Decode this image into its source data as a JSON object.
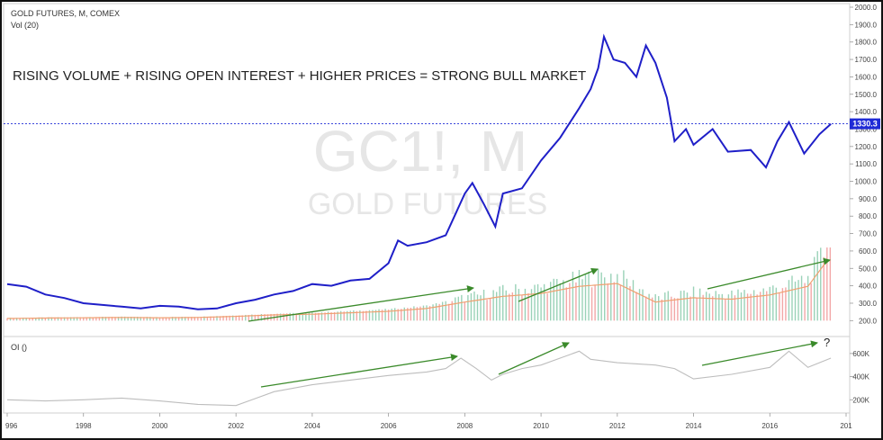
{
  "header": {
    "symbol_line": "GOLD FUTURES, M, COMEX",
    "volume_line": "Vol (20)",
    "oi_line": "OI ()"
  },
  "annotation": {
    "text": "RISING VOLUME + RISING OPEN INTEREST + HIGHER PRICES = STRONG BULL MARKET",
    "question_mark": "?"
  },
  "watermark": {
    "ticker": "GC1!, M",
    "name": "GOLD FUTURES"
  },
  "colors": {
    "price_line": "#1f1fc8",
    "last_price_badge": "#1f2bd6",
    "volume_up": "#9ad2b8",
    "volume_down": "#f2a7a7",
    "volume_ma": "#f0a070",
    "open_interest": "#bdbdbd",
    "arrows": "#3a8a2a",
    "frame": "#111111"
  },
  "chart_data": [
    {
      "type": "line",
      "title": "GOLD FUTURES, M, COMEX",
      "series": [
        {
          "name": "GOLD FUTURES, M, COMEX",
          "x": [
            1996.0,
            1996.5,
            1997.0,
            1997.5,
            1998.0,
            1998.5,
            1999.0,
            1999.5,
            2000.0,
            2000.5,
            2001.0,
            2001.5,
            2002.0,
            2002.5,
            2003.0,
            2003.5,
            2004.0,
            2004.5,
            2005.0,
            2005.5,
            2006.0,
            2006.25,
            2006.5,
            2007.0,
            2007.5,
            2008.0,
            2008.2,
            2008.5,
            2008.8,
            2009.0,
            2009.5,
            2010.0,
            2010.5,
            2011.0,
            2011.3,
            2011.5,
            2011.65,
            2011.9,
            2012.2,
            2012.5,
            2012.75,
            2013.0,
            2013.3,
            2013.5,
            2013.8,
            2014.0,
            2014.5,
            2014.9,
            2015.5,
            2015.9,
            2016.2,
            2016.5,
            2016.9,
            2017.3,
            2017.6
          ],
          "values": [
            410,
            395,
            350,
            330,
            300,
            290,
            280,
            270,
            285,
            280,
            265,
            270,
            300,
            320,
            350,
            370,
            410,
            400,
            430,
            440,
            530,
            660,
            630,
            650,
            690,
            930,
            990,
            870,
            740,
            930,
            960,
            1120,
            1250,
            1420,
            1530,
            1650,
            1830,
            1700,
            1680,
            1600,
            1780,
            1680,
            1480,
            1230,
            1300,
            1210,
            1300,
            1170,
            1180,
            1080,
            1230,
            1340,
            1160,
            1270,
            1330
          ]
        }
      ],
      "xlim": [
        1996,
        2018
      ],
      "ylim": [
        150,
        2000
      ],
      "y_ticks": [
        "2000.0",
        "1900.0",
        "1800.0",
        "1700.0",
        "1600.0",
        "1500.0",
        "1400.0",
        "1300.0",
        "1200.0",
        "1100.0",
        "1000.0",
        "900.0",
        "800.0",
        "700.0",
        "600.0",
        "500.0",
        "400.0",
        "300.0",
        "200.0"
      ],
      "last_price": "1330.3",
      "grid": false
    },
    {
      "type": "bar",
      "title": "Vol (20)",
      "series": [
        {
          "name": "Volume",
          "x": [
            1996,
            1997,
            1998,
            1999,
            2000,
            2001,
            2002,
            2003,
            2004,
            2005,
            2006,
            2007,
            2008,
            2009,
            2010,
            2011,
            2012,
            2013,
            2014,
            2015,
            2016,
            2017,
            2017.5
          ],
          "values": [
            215,
            218,
            220,
            222,
            220,
            222,
            230,
            240,
            245,
            255,
            265,
            285,
            330,
            370,
            390,
            440,
            460,
            330,
            360,
            350,
            380,
            440,
            620
          ]
        }
      ]
    },
    {
      "type": "line",
      "title": "OI ()",
      "series": [
        {
          "name": "OI ()",
          "x": [
            1996.0,
            1997.0,
            1998.0,
            1999.0,
            2000.0,
            2001.0,
            2002.0,
            2002.5,
            2003.0,
            2004.0,
            2005.0,
            2006.0,
            2007.0,
            2007.5,
            2007.9,
            2008.3,
            2008.7,
            2009.0,
            2009.5,
            2010.0,
            2010.5,
            2011.0,
            2011.3,
            2012.0,
            2013.0,
            2013.5,
            2014.0,
            2015.0,
            2016.0,
            2016.5,
            2017.0,
            2017.6
          ],
          "values": [
            200,
            190,
            200,
            215,
            190,
            160,
            150,
            210,
            270,
            330,
            370,
            410,
            440,
            470,
            560,
            470,
            370,
            420,
            470,
            500,
            560,
            620,
            550,
            520,
            500,
            470,
            380,
            420,
            480,
            620,
            480,
            560
          ]
        }
      ],
      "y_ticks": [
        "600K",
        "400K",
        "200K"
      ]
    }
  ],
  "x_axis": {
    "tick_labels": [
      "996",
      "1998",
      "2000",
      "2002",
      "2004",
      "2006",
      "2008",
      "2010",
      "2012",
      "2014",
      "2016",
      "201"
    ]
  }
}
